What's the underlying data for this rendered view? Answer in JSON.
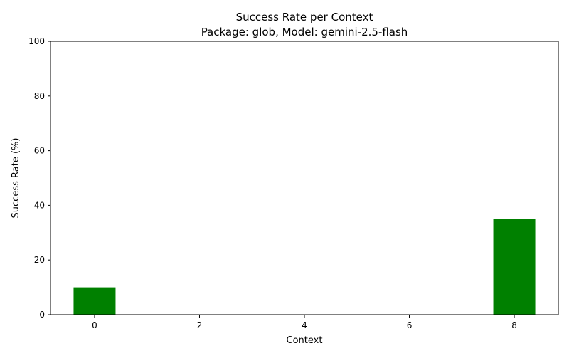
{
  "chart_data": {
    "type": "bar",
    "title": "Success Rate per Context",
    "subtitle": "Package: glob, Model: gemini-2.5-flash",
    "xlabel": "Context",
    "ylabel": "Success Rate (%)",
    "x": [
      0,
      8
    ],
    "values": [
      10,
      35
    ],
    "bar_width": 0.8,
    "bar_color": "#008000",
    "xlim": [
      -0.84,
      8.84
    ],
    "ylim": [
      0,
      100
    ],
    "xticks": [
      0,
      2,
      4,
      6,
      8
    ],
    "yticks": [
      0,
      20,
      40,
      60,
      80,
      100
    ],
    "grid": false,
    "legend": "none"
  }
}
